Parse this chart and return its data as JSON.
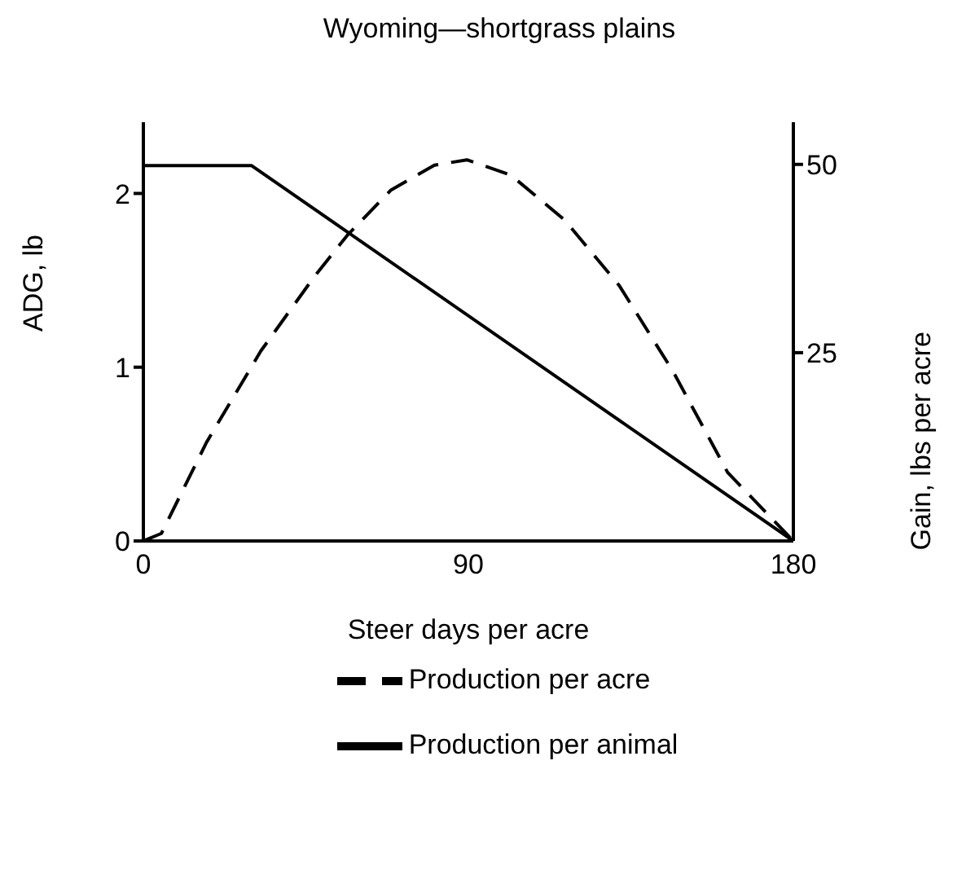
{
  "chart_data": {
    "type": "line",
    "title": "Wyoming—shortgrass plains",
    "xlabel": "Steer days per acre",
    "ylabel": "ADG, lb",
    "y2label": "Gain, lbs per acre",
    "xlim": [
      0,
      180
    ],
    "xticks": [
      0,
      90,
      180
    ],
    "ylim": [
      0,
      2.41
    ],
    "yticks": [
      0,
      1,
      2
    ],
    "y2lim": [
      0,
      55.6
    ],
    "y2ticks": [
      25,
      50
    ],
    "series": [
      {
        "name": "Production per animal",
        "color": "#000000",
        "line_style": "solid",
        "x": [
          0,
          30,
          180
        ],
        "values": [
          2.16,
          2.16,
          0
        ]
      },
      {
        "name": "Production per acre",
        "color": "#000000",
        "line_style": "dashed",
        "axis": "y2",
        "x": [
          0,
          5,
          17.5,
          32.5,
          47.5,
          56.5,
          68.6,
          80.6,
          89.6,
          101.7,
          116.7,
          131.8,
          146.7,
          161.8,
          180
        ],
        "values": [
          0,
          1,
          13.1,
          25.2,
          35.2,
          40.6,
          46.6,
          49.9,
          50.6,
          48.6,
          42.6,
          33.9,
          22.5,
          9.1,
          0
        ]
      }
    ],
    "grid": false,
    "marker": "none",
    "legend": "bottom"
  }
}
